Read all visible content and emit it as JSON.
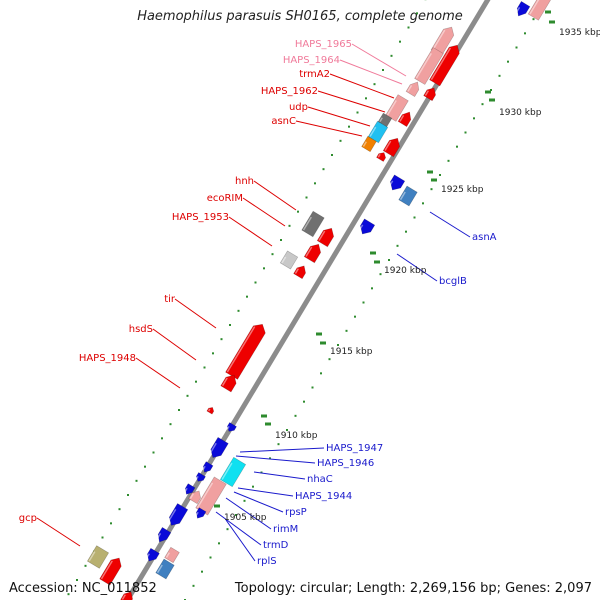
{
  "header": {
    "title": "Haemophilus parasuis SH0165, complete genome"
  },
  "footer": {
    "accession": "Accession: NC_011852",
    "summary": "Topology: circular; Length: 2,269,156 bp; Genes: 2,097"
  },
  "colors": {
    "backbone": "#8c8c8c",
    "ticks": "#2e8b2e",
    "forward_label": "#dd0000",
    "forward_label_pale": "#f07a9a",
    "reverse_label": "#1a1acc",
    "feature_red": "#ee0000",
    "feature_pink": "#f0a0a0",
    "feature_blue": "#0a0ad8",
    "feature_cyan": "#10e0f0",
    "feature_gray": "#707070"
  },
  "scale_labels": [
    "1935 kbp",
    "1930 kbp",
    "1925 kbp",
    "1920 kbp",
    "1915 kbp",
    "1910 kbp",
    "1905 kbp"
  ],
  "gene_labels_forward": [
    "HAPS_1965",
    "HAPS_1964",
    "trmA2",
    "HAPS_1962",
    "udp",
    "asnC",
    "hnh",
    "ecoRIM",
    "HAPS_1953",
    "tir",
    "hsdS",
    "HAPS_1948",
    "gcp"
  ],
  "gene_labels_reverse": [
    "asnA",
    "bcglB",
    "HAPS_1947",
    "HAPS_1946",
    "nhaC",
    "HAPS_1944",
    "rpsP",
    "rimM",
    "trmD",
    "rplS"
  ]
}
